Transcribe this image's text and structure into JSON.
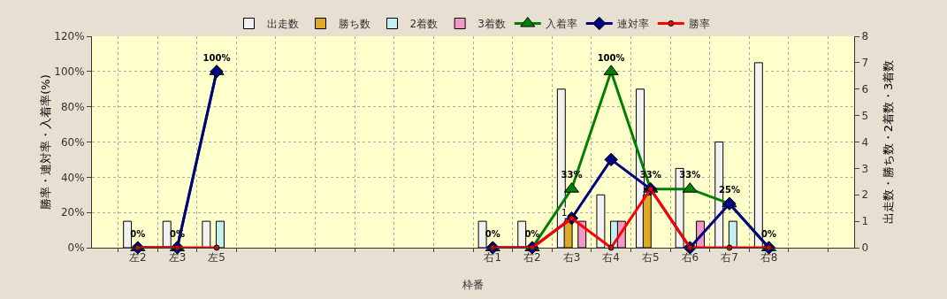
{
  "chart_data": {
    "type": "bar",
    "xlabel": "枠番",
    "ylabel": "勝率・連対率・入着率(%)",
    "y2label": "出走数・勝ち数・2着数・3着数",
    "categories": [
      "左2",
      "左3",
      "左5",
      null,
      null,
      null,
      null,
      null,
      null,
      "右1",
      "右2",
      "右3",
      "右4",
      "右5",
      "右6",
      "右7",
      "右8",
      null
    ],
    "ylim": [
      0,
      120
    ],
    "yticks": [
      {
        "value": 0,
        "label": "0%"
      },
      {
        "value": 20,
        "label": "20%"
      },
      {
        "value": 40,
        "label": "40%"
      },
      {
        "value": 60,
        "label": "60%"
      },
      {
        "value": 80,
        "label": "80%"
      },
      {
        "value": 100,
        "label": "100%"
      },
      {
        "value": 120,
        "label": "120%"
      }
    ],
    "y2lim": [
      0,
      8
    ],
    "y2ticks": [
      0,
      1,
      2,
      3,
      4,
      5,
      6,
      7,
      8
    ],
    "grid": true,
    "legend": "top",
    "series": [
      {
        "name": "出走数",
        "axis": "y2",
        "color": "#f2f2f2",
        "values": [
          1,
          1,
          1,
          null,
          null,
          null,
          null,
          null,
          null,
          1,
          1,
          6,
          2,
          6,
          3,
          4,
          7,
          null
        ]
      },
      {
        "name": "勝ち数",
        "axis": "y2",
        "color": "#e0a828",
        "values": [
          null,
          null,
          null,
          null,
          null,
          null,
          null,
          null,
          null,
          null,
          null,
          1,
          null,
          2,
          null,
          null,
          null,
          null
        ],
        "value_labels": [
          null,
          null,
          null,
          null,
          null,
          null,
          null,
          null,
          null,
          null,
          null,
          "1",
          null,
          null,
          null,
          null,
          null,
          null
        ]
      },
      {
        "name": "2着数",
        "axis": "y2",
        "color": "#c4f0f0",
        "values": [
          null,
          null,
          1,
          null,
          null,
          null,
          null,
          null,
          null,
          null,
          null,
          null,
          1,
          null,
          null,
          1,
          null,
          null
        ]
      },
      {
        "name": "3着数",
        "axis": "y2",
        "color": "#f098c8",
        "values": [
          null,
          null,
          null,
          null,
          null,
          null,
          null,
          null,
          null,
          null,
          null,
          1,
          1,
          null,
          1,
          null,
          null,
          null
        ]
      },
      {
        "name": "入着率",
        "type": "line",
        "marker": "triangle",
        "color": "#008000",
        "values": [
          0,
          0,
          100,
          null,
          null,
          null,
          null,
          null,
          null,
          0,
          0,
          33.3,
          100,
          33.3,
          33.3,
          25,
          0,
          null
        ],
        "value_labels": [
          "0%",
          "0%",
          "100%",
          null,
          null,
          null,
          null,
          null,
          null,
          "0%",
          "0%",
          "33%",
          "100%",
          "33%",
          "33%",
          "25%",
          "0%",
          null
        ]
      },
      {
        "name": "連対率",
        "type": "line",
        "marker": "diamond",
        "color": "#000080",
        "values": [
          0,
          0,
          100,
          null,
          null,
          null,
          null,
          null,
          null,
          0,
          0,
          16.7,
          50,
          33.3,
          0,
          25,
          0,
          null
        ]
      },
      {
        "name": "勝率",
        "type": "line",
        "marker": "circle",
        "color": "#ff0000",
        "values": [
          0,
          0,
          0,
          null,
          null,
          null,
          null,
          null,
          null,
          0,
          0,
          16.7,
          0,
          33.3,
          0,
          0,
          0,
          null
        ]
      }
    ]
  }
}
